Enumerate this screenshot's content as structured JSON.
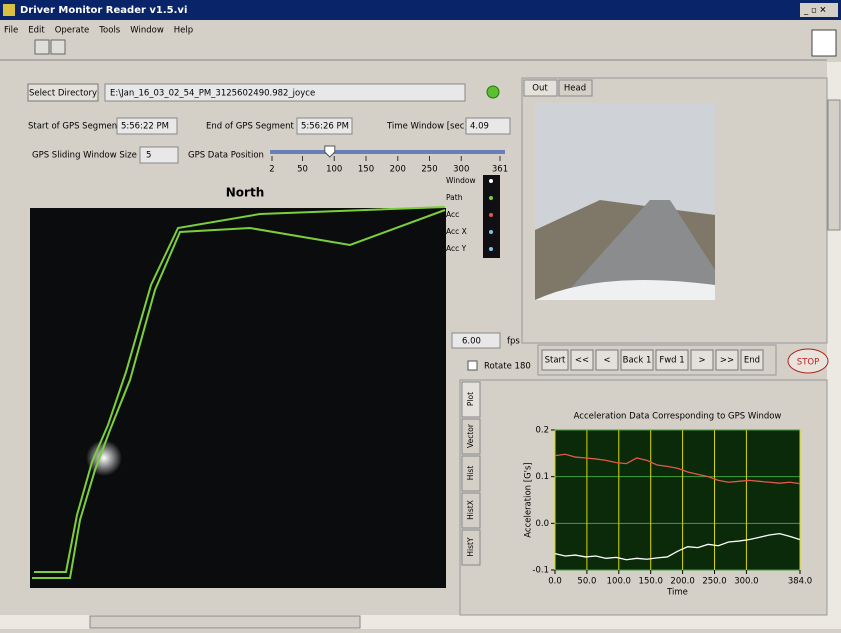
{
  "window": {
    "title": "Driver Monitor Reader v1.5.vi",
    "menu": [
      "File",
      "Edit",
      "Operate",
      "Tools",
      "Window",
      "Help"
    ]
  },
  "directory": {
    "button": "Select Directory",
    "path": "E:\\Jan_16_03_02_54_PM_3125602490.982_joyce"
  },
  "gps": {
    "start_label": "Start of GPS Segment",
    "start": "5:56:22 PM",
    "end_label": "End of GPS Segment",
    "end": "5:56:26 PM",
    "window_label": "Time Window [sec]",
    "window": "4.09",
    "size_label": "GPS Sliding Window Size",
    "size": "5",
    "position_label": "GPS Data Position",
    "position": 93,
    "position_ticks": [
      2,
      50,
      100,
      150,
      200,
      250,
      300,
      361
    ]
  },
  "map": {
    "title": "North",
    "legend": [
      "Window",
      "Path",
      "Acc",
      "Acc X",
      "Acc Y"
    ]
  },
  "video": {
    "tabs": [
      "Out",
      "Head"
    ]
  },
  "playback": {
    "fps": "6.00",
    "fps_unit": "fps",
    "rotate": "Rotate 180",
    "buttons": [
      "Start",
      "<<",
      "<",
      "Back 1",
      "Fwd 1",
      ">",
      ">>",
      "End"
    ],
    "stop": "STOP"
  },
  "plot_tabs": [
    "Plot",
    "Vector",
    "Hist",
    "HistX",
    "HistY"
  ],
  "chart_data": {
    "type": "line",
    "title": "Acceleration Data Corresponding to GPS Window",
    "x_label": "Time",
    "y_label": "Acceleration [G's]",
    "x": [
      0,
      16,
      32,
      48,
      64,
      80,
      96,
      112,
      128,
      144,
      160,
      176,
      192,
      208,
      224,
      240,
      256,
      272,
      288,
      304,
      320,
      336,
      352,
      368,
      384
    ],
    "series": [
      {
        "color": "#e05a4a",
        "values": [
          0.145,
          0.148,
          0.142,
          0.14,
          0.138,
          0.135,
          0.13,
          0.128,
          0.14,
          0.135,
          0.125,
          0.122,
          0.118,
          0.11,
          0.105,
          0.1,
          0.092,
          0.088,
          0.09,
          0.092,
          0.09,
          0.088,
          0.086,
          0.088,
          0.085
        ]
      },
      {
        "color": "#ffffff",
        "values": [
          -0.065,
          -0.07,
          -0.068,
          -0.072,
          -0.07,
          -0.075,
          -0.073,
          -0.078,
          -0.075,
          -0.077,
          -0.074,
          -0.072,
          -0.06,
          -0.05,
          -0.052,
          -0.045,
          -0.048,
          -0.04,
          -0.038,
          -0.035,
          -0.03,
          -0.025,
          -0.022,
          -0.028,
          -0.035
        ]
      }
    ],
    "xlim": [
      0,
      384
    ],
    "ylim": [
      -0.1,
      0.2
    ],
    "xticks": [
      {
        "value": 0,
        "label": "0.0"
      },
      {
        "value": 50,
        "label": "50.0"
      },
      {
        "value": 100,
        "label": "100.0"
      },
      {
        "value": 150,
        "label": "150.0"
      },
      {
        "value": 200,
        "label": "200.0"
      },
      {
        "value": 250,
        "label": "250.0"
      },
      {
        "value": 300,
        "label": "300.0"
      },
      {
        "value": 384,
        "label": "384.0"
      }
    ],
    "yticks": [
      0.2,
      0.1,
      {
        "value": 0,
        "label": "0.0"
      },
      -0.1
    ],
    "grid": true,
    "grid_color": "#d8d800",
    "background": "#0a2a0a"
  }
}
